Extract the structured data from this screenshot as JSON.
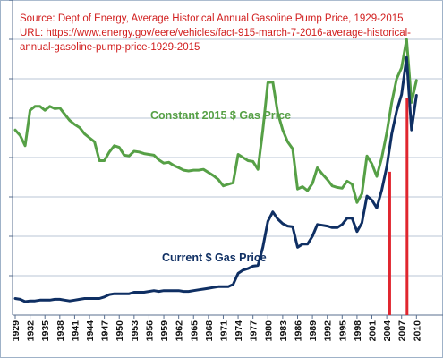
{
  "source": {
    "line1": "Source: Dept of Energy, Average Historical Annual Gasoline Pump Price, 1929-2015",
    "line2": "URL: https://www.energy.gov/eere/vehicles/fact-915-march-7-2016-average-historical-",
    "line3": "annual-gasoline-pump-price-1929-2015"
  },
  "colors": {
    "background": "#ffffff",
    "border": "#9fb2c8",
    "grid": "#b9c6d6",
    "axis": "#5a6f8f",
    "source_text": "#d11e1e",
    "constant_line": "#56a046",
    "current_line": "#0f2f63",
    "marker": "#e0262f"
  },
  "chart_data": {
    "type": "line",
    "title": "",
    "xlabel": "",
    "ylabel": "",
    "xlim": [
      1929,
      2015
    ],
    "ylim": [
      0,
      4
    ],
    "grid": true,
    "x_tick_labels": [
      "1929",
      "1932",
      "1935",
      "1938",
      "1941",
      "1944",
      "1947",
      "1950",
      "1953",
      "1956",
      "1959",
      "1962",
      "1965",
      "1968",
      "1971",
      "1974",
      "1977",
      "1980",
      "1983",
      "1986",
      "1989",
      "1992",
      "1995",
      "1998",
      "2001",
      "2004",
      "2007",
      "2010"
    ],
    "series": [
      {
        "name": "Constant 2015 $ Gas Price",
        "color": "#56a046",
        "points": [
          [
            1929,
            2.35
          ],
          [
            1930,
            2.28
          ],
          [
            1931,
            2.15
          ],
          [
            1932,
            2.6
          ],
          [
            1933,
            2.65
          ],
          [
            1934,
            2.65
          ],
          [
            1935,
            2.6
          ],
          [
            1936,
            2.65
          ],
          [
            1937,
            2.62
          ],
          [
            1938,
            2.63
          ],
          [
            1939,
            2.55
          ],
          [
            1940,
            2.47
          ],
          [
            1941,
            2.42
          ],
          [
            1942,
            2.38
          ],
          [
            1943,
            2.3
          ],
          [
            1944,
            2.25
          ],
          [
            1945,
            2.2
          ],
          [
            1946,
            1.96
          ],
          [
            1947,
            1.96
          ],
          [
            1948,
            2.07
          ],
          [
            1949,
            2.15
          ],
          [
            1950,
            2.13
          ],
          [
            1951,
            2.03
          ],
          [
            1952,
            2.02
          ],
          [
            1953,
            2.08
          ],
          [
            1954,
            2.07
          ],
          [
            1955,
            2.05
          ],
          [
            1956,
            2.04
          ],
          [
            1957,
            2.03
          ],
          [
            1958,
            1.97
          ],
          [
            1959,
            1.93
          ],
          [
            1960,
            1.94
          ],
          [
            1961,
            1.9
          ],
          [
            1962,
            1.87
          ],
          [
            1963,
            1.84
          ],
          [
            1964,
            1.83
          ],
          [
            1965,
            1.84
          ],
          [
            1966,
            1.84
          ],
          [
            1967,
            1.85
          ],
          [
            1968,
            1.81
          ],
          [
            1969,
            1.77
          ],
          [
            1970,
            1.72
          ],
          [
            1971,
            1.64
          ],
          [
            1972,
            1.66
          ],
          [
            1973,
            1.68
          ],
          [
            1974,
            2.04
          ],
          [
            1975,
            2.0
          ],
          [
            1976,
            1.96
          ],
          [
            1977,
            1.95
          ],
          [
            1978,
            1.85
          ],
          [
            1979,
            2.35
          ],
          [
            1980,
            2.95
          ],
          [
            1981,
            2.96
          ],
          [
            1982,
            2.57
          ],
          [
            1983,
            2.35
          ],
          [
            1984,
            2.2
          ],
          [
            1985,
            2.11
          ],
          [
            1986,
            1.6
          ],
          [
            1987,
            1.63
          ],
          [
            1988,
            1.58
          ],
          [
            1989,
            1.67
          ],
          [
            1990,
            1.87
          ],
          [
            1991,
            1.79
          ],
          [
            1992,
            1.72
          ],
          [
            1993,
            1.64
          ],
          [
            1994,
            1.62
          ],
          [
            1995,
            1.61
          ],
          [
            1996,
            1.7
          ],
          [
            1997,
            1.66
          ],
          [
            1998,
            1.43
          ],
          [
            1999,
            1.54
          ],
          [
            2000,
            2.02
          ],
          [
            2001,
            1.92
          ],
          [
            2002,
            1.76
          ],
          [
            2003,
            2.0
          ],
          [
            2004,
            2.31
          ],
          [
            2005,
            2.7
          ],
          [
            2006,
            3.0
          ],
          [
            2007,
            3.14
          ],
          [
            2008,
            3.5
          ],
          [
            2009,
            2.7
          ],
          [
            2010,
            2.98
          ]
        ]
      },
      {
        "name": "Current $ Gas Price",
        "color": "#0f2f63",
        "points": [
          [
            1929,
            0.21
          ],
          [
            1930,
            0.2
          ],
          [
            1931,
            0.17
          ],
          [
            1932,
            0.18
          ],
          [
            1933,
            0.18
          ],
          [
            1934,
            0.19
          ],
          [
            1935,
            0.19
          ],
          [
            1936,
            0.19
          ],
          [
            1937,
            0.2
          ],
          [
            1938,
            0.2
          ],
          [
            1939,
            0.19
          ],
          [
            1940,
            0.18
          ],
          [
            1941,
            0.19
          ],
          [
            1942,
            0.2
          ],
          [
            1943,
            0.21
          ],
          [
            1944,
            0.21
          ],
          [
            1945,
            0.21
          ],
          [
            1946,
            0.21
          ],
          [
            1947,
            0.23
          ],
          [
            1948,
            0.26
          ],
          [
            1949,
            0.27
          ],
          [
            1950,
            0.27
          ],
          [
            1951,
            0.27
          ],
          [
            1952,
            0.27
          ],
          [
            1953,
            0.29
          ],
          [
            1954,
            0.29
          ],
          [
            1955,
            0.29
          ],
          [
            1956,
            0.3
          ],
          [
            1957,
            0.31
          ],
          [
            1958,
            0.3
          ],
          [
            1959,
            0.31
          ],
          [
            1960,
            0.31
          ],
          [
            1961,
            0.31
          ],
          [
            1962,
            0.31
          ],
          [
            1963,
            0.3
          ],
          [
            1964,
            0.3
          ],
          [
            1965,
            0.31
          ],
          [
            1966,
            0.32
          ],
          [
            1967,
            0.33
          ],
          [
            1968,
            0.34
          ],
          [
            1969,
            0.35
          ],
          [
            1970,
            0.36
          ],
          [
            1971,
            0.36
          ],
          [
            1972,
            0.36
          ],
          [
            1973,
            0.39
          ],
          [
            1974,
            0.53
          ],
          [
            1975,
            0.57
          ],
          [
            1976,
            0.59
          ],
          [
            1977,
            0.62
          ],
          [
            1978,
            0.63
          ],
          [
            1979,
            0.86
          ],
          [
            1980,
            1.19
          ],
          [
            1981,
            1.31
          ],
          [
            1982,
            1.22
          ],
          [
            1983,
            1.16
          ],
          [
            1984,
            1.13
          ],
          [
            1985,
            1.12
          ],
          [
            1986,
            0.86
          ],
          [
            1987,
            0.9
          ],
          [
            1988,
            0.9
          ],
          [
            1989,
            1.0
          ],
          [
            1990,
            1.15
          ],
          [
            1991,
            1.14
          ],
          [
            1992,
            1.13
          ],
          [
            1993,
            1.11
          ],
          [
            1994,
            1.11
          ],
          [
            1995,
            1.15
          ],
          [
            1996,
            1.23
          ],
          [
            1997,
            1.23
          ],
          [
            1998,
            1.06
          ],
          [
            1999,
            1.17
          ],
          [
            2000,
            1.51
          ],
          [
            2001,
            1.46
          ],
          [
            2002,
            1.36
          ],
          [
            2003,
            1.59
          ],
          [
            2004,
            1.88
          ],
          [
            2005,
            2.3
          ],
          [
            2006,
            2.59
          ],
          [
            2007,
            2.8
          ],
          [
            2008,
            3.27
          ],
          [
            2009,
            2.35
          ],
          [
            2010,
            2.79
          ]
        ]
      }
    ],
    "markers": [
      {
        "x": 2004.6,
        "y": 1.82,
        "color": "#e0262f"
      },
      {
        "x": 2008.1,
        "y": 2.76,
        "color": "#e0262f"
      }
    ]
  }
}
